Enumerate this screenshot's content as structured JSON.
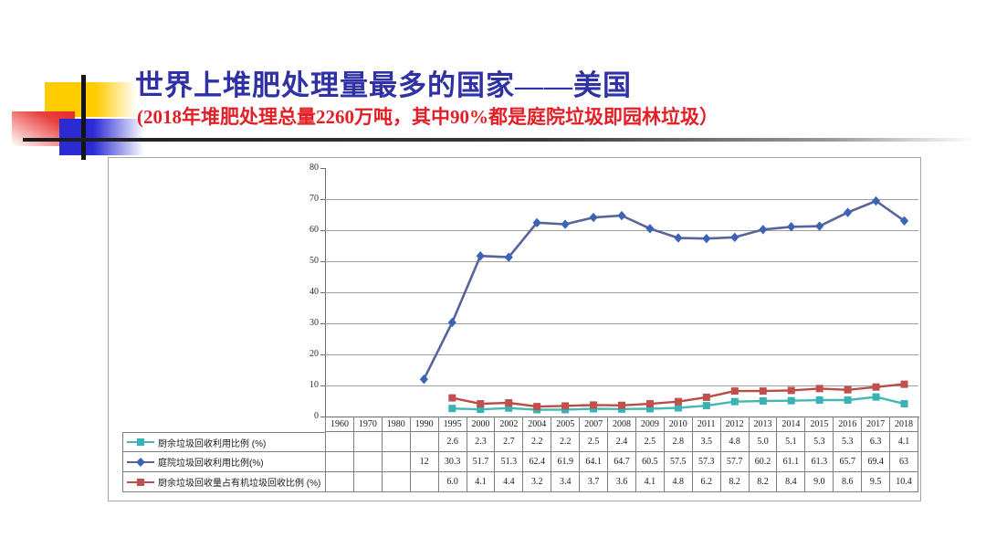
{
  "slide": {
    "title": "世界上堆肥处理量最多的国家——美国",
    "subtitle": "(2018年堆肥处理总量2260万吨，其中90%都是庭院垃圾即园林垃圾）"
  },
  "colors": {
    "title": "#2F31A5",
    "subtitle": "#E31E25",
    "decor_yellow": "#FFCC00",
    "decor_red": "#E52A2A",
    "decor_blue": "#2B2BD6",
    "cross_lines": "#141414",
    "chart_border": "#A6A6A6",
    "gridline": "#9E9E9E",
    "axis": "#6B6B6B",
    "table_border": "#7F7F7F"
  },
  "chart_data": {
    "type": "line",
    "title": "",
    "xlabel": "",
    "ylabel": "",
    "ylim": [
      0,
      80
    ],
    "yticks": [
      0,
      10,
      20,
      30,
      40,
      50,
      60,
      70,
      80
    ],
    "grid": true,
    "legend_position": "data-table-left",
    "categories": [
      "1960",
      "1970",
      "1980",
      "1990",
      "1995",
      "2000",
      "2002",
      "2004",
      "2005",
      "2007",
      "2008",
      "2009",
      "2010",
      "2011",
      "2012",
      "2013",
      "2014",
      "2015",
      "2016",
      "2017",
      "2018"
    ],
    "series": [
      {
        "name": "厨余垃圾回收利用比例 (%)",
        "marker": "square",
        "color": "#38B2B5",
        "line_color": "#45B8B4",
        "values": [
          null,
          null,
          null,
          null,
          2.6,
          2.3,
          2.7,
          2.2,
          2.2,
          2.5,
          2.4,
          2.5,
          2.8,
          3.5,
          4.8,
          5.0,
          5.1,
          5.3,
          5.3,
          6.3,
          4.1
        ],
        "labels": [
          "",
          "",
          "",
          "",
          "2.6",
          "2.3",
          "2.7",
          "2.2",
          "2.2",
          "2.5",
          "2.4",
          "2.5",
          "2.8",
          "3.5",
          "4.8",
          "5.0",
          "5.1",
          "5.3",
          "5.3",
          "6.3",
          "4.1"
        ]
      },
      {
        "name": "庭院垃圾回收利用比例(%)",
        "marker": "diamond",
        "color": "#3C64B4",
        "line_color": "#59639B",
        "values": [
          null,
          null,
          null,
          12,
          30.3,
          51.7,
          51.3,
          62.4,
          61.9,
          64.1,
          64.7,
          60.5,
          57.5,
          57.3,
          57.7,
          60.2,
          61.1,
          61.3,
          65.7,
          69.4,
          63
        ],
        "labels": [
          "",
          "",
          "",
          "12",
          "30.3",
          "51.7",
          "51.3",
          "62.4",
          "61.9",
          "64.1",
          "64.7",
          "60.5",
          "57.5",
          "57.3",
          "57.7",
          "60.2",
          "61.1",
          "61.3",
          "65.7",
          "69.4",
          "63"
        ]
      },
      {
        "name": "厨余垃圾回收量占有机垃圾回收比例 (%)",
        "marker": "square",
        "color": "#C0504D",
        "line_color": "#BA4B47",
        "values": [
          null,
          null,
          null,
          null,
          6.0,
          4.1,
          4.4,
          3.2,
          3.4,
          3.7,
          3.6,
          4.1,
          4.8,
          6.2,
          8.2,
          8.2,
          8.4,
          9.0,
          8.6,
          9.5,
          10.4
        ],
        "labels": [
          "",
          "",
          "",
          "",
          "6.0",
          "4.1",
          "4.4",
          "3.2",
          "3.4",
          "3.7",
          "3.6",
          "4.1",
          "4.8",
          "6.2",
          "8.2",
          "8.2",
          "8.4",
          "9.0",
          "8.6",
          "9.5",
          "10.4"
        ]
      }
    ]
  }
}
